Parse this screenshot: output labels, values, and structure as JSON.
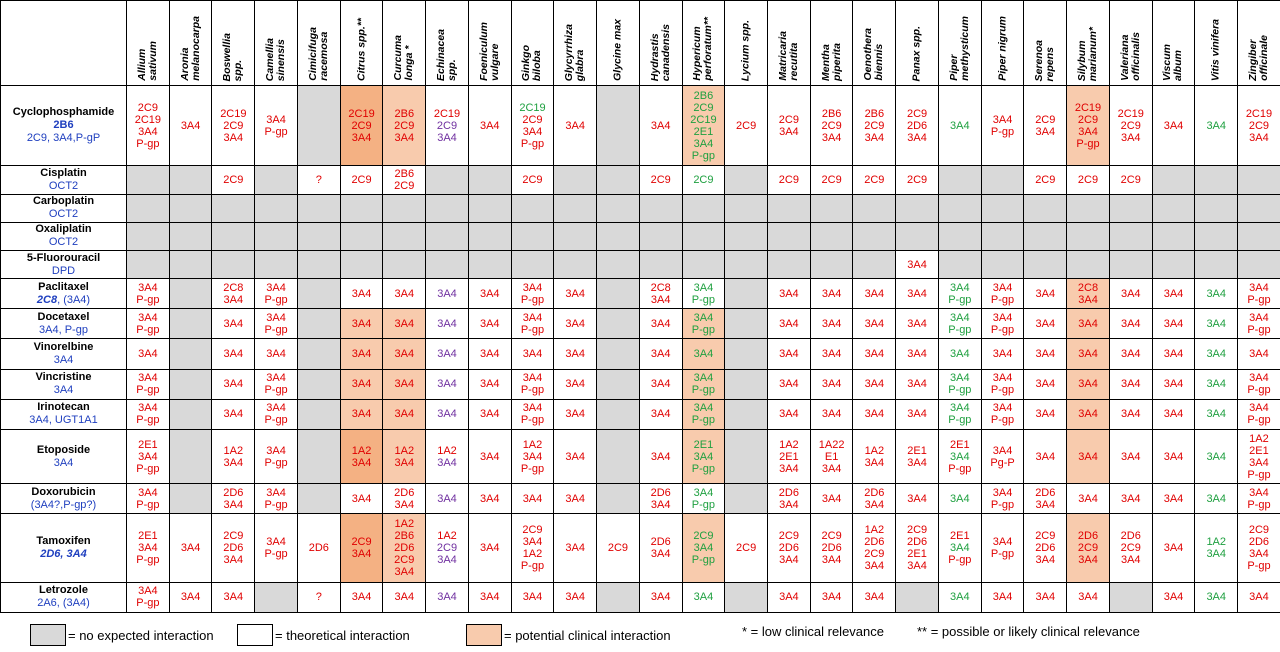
{
  "herbs": [
    "Allium\nsativum",
    "Aronia\nmelanocarpa",
    "Boswellia\nspp.",
    "Camellia\nsinensis",
    "Cimicifuga\nracemosa",
    "Citrus spp.**",
    "Curcuma\nlonga *",
    "Echinacea\nspp.",
    "Foeniculum\nvulgare",
    "Ginkgo\nbiloba",
    "Glycyrrhiza\nglabra",
    "Glycine max",
    "Hydrastis\ncanadensis",
    "Hypericum\nperforatum**",
    "Lycium spp.",
    "Matricaria\nrecutita",
    "Mentha\npiperita",
    "Oenothera\nbiennis",
    "Panax spp.",
    "Piper\nmethysticum",
    "Piper nigrum",
    "Serenoa\nrepens",
    "Silybum\nmarianum*",
    "Valeriana\nofficinalis",
    "Viscum\nalbum",
    "Vitis vinifera",
    "Zingiber\nofficinale"
  ],
  "drugs": [
    {
      "name": "Cyclophosphamide",
      "sub1": "2B6",
      "sub2": "2C9, 3A4,P-gP"
    },
    {
      "name": "Cisplatin",
      "sub1": "OCT2"
    },
    {
      "name": "Carboplatin",
      "sub1": "OCT2"
    },
    {
      "name": "Oxaliplatin",
      "sub1": "OCT2"
    },
    {
      "name": "5-Fluorouracil",
      "sub1": "DPD"
    },
    {
      "name": "Paclitaxel",
      "sub1": "2C8",
      "sub2": ", (3A4)"
    },
    {
      "name": "Docetaxel",
      "sub1": "3A4, P-gp"
    },
    {
      "name": "Vinorelbine",
      "sub1": "3A4"
    },
    {
      "name": "Vincristine",
      "sub1": "3A4"
    },
    {
      "name": "Irinotecan",
      "sub1": "3A4, UGT1A1"
    },
    {
      "name": "Etoposide",
      "sub1": "3A4"
    },
    {
      "name": "Doxorubicin",
      "sub1": "(3A4?,P-gp?)"
    },
    {
      "name": "Tamoxifen",
      "sub1": "2D6, 3A4"
    },
    {
      "name": "Letrozole",
      "sub1": "2A6, (3A4)"
    }
  ],
  "cells": [
    [
      [
        "w",
        "r",
        "2C9\n2C19\n3A4\nP-gp"
      ],
      [
        "w",
        "r",
        "3A4"
      ],
      [
        "w",
        "r",
        "2C19\n2C9\n3A4"
      ],
      [
        "w",
        "r",
        "3A4\nP-gp"
      ],
      [
        "g",
        "",
        ""
      ],
      [
        "p2",
        "r",
        "2C19\n2C9\n3A4"
      ],
      [
        "p",
        "r",
        "2B6\n2C9\n3A4"
      ],
      [
        "w",
        "m",
        "2C19|r\n2C9|p\n3A4|p"
      ],
      [
        "w",
        "r",
        "3A4"
      ],
      [
        "w",
        "m",
        "2C19|g\n2C9|r\n3A4|r\nP-gp|r"
      ],
      [
        "w",
        "r",
        "3A4"
      ],
      [
        "g",
        "",
        ""
      ],
      [
        "w",
        "r",
        "3A4"
      ],
      [
        "p",
        "g",
        "2B6\n2C9\n2C19\n2E1\n3A4\nP-gp"
      ],
      [
        "w",
        "r",
        "2C9"
      ],
      [
        "w",
        "r",
        "2C9\n3A4"
      ],
      [
        "w",
        "r",
        "2B6\n2C9\n3A4"
      ],
      [
        "w",
        "r",
        "2B6\n2C9\n3A4"
      ],
      [
        "w",
        "r",
        "2C9\n2D6\n3A4"
      ],
      [
        "w",
        "g",
        "3A4"
      ],
      [
        "w",
        "r",
        "3A4\nP-gp"
      ],
      [
        "w",
        "r",
        "2C9\n3A4"
      ],
      [
        "p",
        "r",
        "2C19\n2C9\n3A4\nP-gp"
      ],
      [
        "w",
        "r",
        "2C19\n2C9\n3A4"
      ],
      [
        "w",
        "r",
        "3A4"
      ],
      [
        "w",
        "g",
        "3A4"
      ],
      [
        "w",
        "r",
        "2C19\n2C9\n3A4"
      ]
    ],
    [
      [
        "g",
        "",
        ""
      ],
      [
        "g",
        "",
        ""
      ],
      [
        "w",
        "r",
        "2C9"
      ],
      [
        "g",
        "",
        ""
      ],
      [
        "w",
        "r",
        "?"
      ],
      [
        "w",
        "r",
        "2C9"
      ],
      [
        "w",
        "r",
        "2B6\n2C9"
      ],
      [
        "g",
        "",
        ""
      ],
      [
        "g",
        "",
        ""
      ],
      [
        "w",
        "r",
        "2C9"
      ],
      [
        "g",
        "",
        ""
      ],
      [
        "g",
        "",
        ""
      ],
      [
        "w",
        "r",
        "2C9"
      ],
      [
        "w",
        "g",
        "2C9"
      ],
      [
        "g",
        "",
        ""
      ],
      [
        "w",
        "r",
        "2C9"
      ],
      [
        "w",
        "r",
        "2C9"
      ],
      [
        "w",
        "r",
        "2C9"
      ],
      [
        "w",
        "r",
        "2C9"
      ],
      [
        "g",
        "",
        ""
      ],
      [
        "g",
        "",
        ""
      ],
      [
        "w",
        "r",
        "2C9"
      ],
      [
        "w",
        "r",
        "2C9"
      ],
      [
        "w",
        "r",
        "2C9"
      ],
      [
        "g",
        "",
        ""
      ],
      [
        "g",
        "",
        ""
      ],
      [
        "g",
        "",
        ""
      ]
    ],
    "allgray",
    "allgray",
    "fu",
    [
      [
        "w",
        "r",
        "3A4\nP-gp"
      ],
      [
        "g",
        "",
        ""
      ],
      [
        "w",
        "r",
        "2C8\n3A4"
      ],
      [
        "w",
        "r",
        "3A4\nP-gp"
      ],
      [
        "g",
        "",
        ""
      ],
      [
        "w",
        "r",
        "3A4"
      ],
      [
        "w",
        "r",
        "3A4"
      ],
      [
        "w",
        "p",
        "3A4"
      ],
      [
        "w",
        "r",
        "3A4"
      ],
      [
        "w",
        "r",
        "3A4\nP-gp"
      ],
      [
        "w",
        "r",
        "3A4"
      ],
      [
        "g",
        "",
        ""
      ],
      [
        "w",
        "r",
        "2C8\n3A4"
      ],
      [
        "w",
        "g",
        "3A4\nP-gp"
      ],
      [
        "g",
        "",
        ""
      ],
      [
        "w",
        "r",
        "3A4"
      ],
      [
        "w",
        "r",
        "3A4"
      ],
      [
        "w",
        "r",
        "3A4"
      ],
      [
        "w",
        "r",
        "3A4"
      ],
      [
        "w",
        "g",
        "3A4\nP-gp"
      ],
      [
        "w",
        "r",
        "3A4\nP-gp"
      ],
      [
        "w",
        "r",
        "3A4"
      ],
      [
        "p",
        "r",
        "2C8\n3A4"
      ],
      [
        "w",
        "r",
        "3A4"
      ],
      [
        "w",
        "r",
        "3A4"
      ],
      [
        "w",
        "g",
        "3A4"
      ],
      [
        "w",
        "r",
        "3A4\nP-gp"
      ]
    ],
    [
      [
        "w",
        "r",
        "3A4\nP-gp"
      ],
      [
        "g",
        "",
        ""
      ],
      [
        "w",
        "r",
        "3A4"
      ],
      [
        "w",
        "r",
        "3A4\nP-gp"
      ],
      [
        "g",
        "",
        ""
      ],
      [
        "p",
        "r",
        "3A4"
      ],
      [
        "p",
        "r",
        "3A4"
      ],
      [
        "w",
        "p",
        "3A4"
      ],
      [
        "w",
        "r",
        "3A4"
      ],
      [
        "w",
        "r",
        "3A4\nP-gp"
      ],
      [
        "w",
        "r",
        "3A4"
      ],
      [
        "g",
        "",
        ""
      ],
      [
        "w",
        "r",
        "3A4"
      ],
      [
        "p",
        "g",
        "3A4\nP-gp"
      ],
      [
        "g",
        "",
        ""
      ],
      [
        "w",
        "r",
        "3A4"
      ],
      [
        "w",
        "r",
        "3A4"
      ],
      [
        "w",
        "r",
        "3A4"
      ],
      [
        "w",
        "r",
        "3A4"
      ],
      [
        "w",
        "g",
        "3A4\nP-gp"
      ],
      [
        "w",
        "r",
        "3A4\nP-gp"
      ],
      [
        "w",
        "r",
        "3A4"
      ],
      [
        "p",
        "r",
        "3A4"
      ],
      [
        "w",
        "r",
        "3A4"
      ],
      [
        "w",
        "r",
        "3A4"
      ],
      [
        "w",
        "g",
        "3A4"
      ],
      [
        "w",
        "r",
        "3A4\nP-gp"
      ]
    ],
    [
      [
        "w",
        "r",
        "3A4"
      ],
      [
        "g",
        "",
        ""
      ],
      [
        "w",
        "r",
        "3A4"
      ],
      [
        "w",
        "r",
        "3A4"
      ],
      [
        "g",
        "",
        ""
      ],
      [
        "p",
        "r",
        "3A4"
      ],
      [
        "p",
        "r",
        "3A4"
      ],
      [
        "w",
        "p",
        "3A4"
      ],
      [
        "w",
        "r",
        "3A4"
      ],
      [
        "w",
        "r",
        "3A4"
      ],
      [
        "w",
        "r",
        "3A4"
      ],
      [
        "g",
        "",
        ""
      ],
      [
        "w",
        "r",
        "3A4"
      ],
      [
        "p",
        "g",
        "3A4"
      ],
      [
        "g",
        "",
        ""
      ],
      [
        "w",
        "r",
        "3A4"
      ],
      [
        "w",
        "r",
        "3A4"
      ],
      [
        "w",
        "r",
        "3A4"
      ],
      [
        "w",
        "r",
        "3A4"
      ],
      [
        "w",
        "g",
        "3A4"
      ],
      [
        "w",
        "r",
        "3A4"
      ],
      [
        "w",
        "r",
        "3A4"
      ],
      [
        "p",
        "r",
        "3A4"
      ],
      [
        "w",
        "r",
        "3A4"
      ],
      [
        "w",
        "r",
        "3A4"
      ],
      [
        "w",
        "g",
        "3A4"
      ],
      [
        "w",
        "r",
        "3A4"
      ]
    ],
    [
      [
        "w",
        "r",
        "3A4\nP-gp"
      ],
      [
        "g",
        "",
        ""
      ],
      [
        "w",
        "r",
        "3A4"
      ],
      [
        "w",
        "r",
        "3A4\nP-gp"
      ],
      [
        "g",
        "",
        ""
      ],
      [
        "p",
        "r",
        "3A4"
      ],
      [
        "p",
        "r",
        "3A4"
      ],
      [
        "w",
        "p",
        "3A4"
      ],
      [
        "w",
        "r",
        "3A4"
      ],
      [
        "w",
        "r",
        "3A4\nP-gp"
      ],
      [
        "w",
        "r",
        "3A4"
      ],
      [
        "g",
        "",
        ""
      ],
      [
        "w",
        "r",
        "3A4"
      ],
      [
        "p",
        "g",
        "3A4\nP-gp"
      ],
      [
        "g",
        "",
        ""
      ],
      [
        "w",
        "r",
        "3A4"
      ],
      [
        "w",
        "r",
        "3A4"
      ],
      [
        "w",
        "r",
        "3A4"
      ],
      [
        "w",
        "r",
        "3A4"
      ],
      [
        "w",
        "g",
        "3A4\nP-gp"
      ],
      [
        "w",
        "r",
        "3A4\nP-gp"
      ],
      [
        "w",
        "r",
        "3A4"
      ],
      [
        "p",
        "r",
        "3A4"
      ],
      [
        "w",
        "r",
        "3A4"
      ],
      [
        "w",
        "r",
        "3A4"
      ],
      [
        "w",
        "g",
        "3A4"
      ],
      [
        "w",
        "r",
        "3A4\nP-gp"
      ]
    ],
    [
      [
        "w",
        "r",
        "3A4\nP-gp"
      ],
      [
        "g",
        "",
        ""
      ],
      [
        "w",
        "r",
        "3A4"
      ],
      [
        "w",
        "r",
        "3A4\nP-gp"
      ],
      [
        "g",
        "",
        ""
      ],
      [
        "p",
        "r",
        "3A4"
      ],
      [
        "p",
        "r",
        "3A4"
      ],
      [
        "w",
        "p",
        "3A4"
      ],
      [
        "w",
        "r",
        "3A4"
      ],
      [
        "w",
        "r",
        "3A4\nP-gp"
      ],
      [
        "w",
        "r",
        "3A4"
      ],
      [
        "g",
        "",
        ""
      ],
      [
        "w",
        "r",
        "3A4"
      ],
      [
        "p",
        "g",
        "3A4\nP-gp"
      ],
      [
        "g",
        "",
        ""
      ],
      [
        "w",
        "r",
        "3A4"
      ],
      [
        "w",
        "r",
        "3A4"
      ],
      [
        "w",
        "r",
        "3A4"
      ],
      [
        "w",
        "r",
        "3A4"
      ],
      [
        "w",
        "g",
        "3A4\nP-gp"
      ],
      [
        "w",
        "r",
        "3A4\nP-gp"
      ],
      [
        "w",
        "r",
        "3A4"
      ],
      [
        "p",
        "r",
        "3A4"
      ],
      [
        "w",
        "r",
        "3A4"
      ],
      [
        "w",
        "r",
        "3A4"
      ],
      [
        "w",
        "g",
        "3A4"
      ],
      [
        "w",
        "r",
        "3A4\nP-gp"
      ]
    ],
    [
      [
        "w",
        "r",
        "2E1\n3A4\nP-gp"
      ],
      [
        "g",
        "",
        ""
      ],
      [
        "w",
        "r",
        "1A2\n3A4"
      ],
      [
        "w",
        "r",
        "3A4\nP-gp"
      ],
      [
        "g",
        "",
        ""
      ],
      [
        "p2",
        "r",
        "1A2\n3A4"
      ],
      [
        "p",
        "r",
        "1A2\n3A4"
      ],
      [
        "w",
        "m",
        "1A2|r\n3A4|p"
      ],
      [
        "w",
        "r",
        "3A4"
      ],
      [
        "w",
        "r",
        "1A2\n3A4\nP-gp"
      ],
      [
        "w",
        "r",
        "3A4"
      ],
      [
        "g",
        "",
        ""
      ],
      [
        "w",
        "r",
        "3A4"
      ],
      [
        "p",
        "g",
        "2E1\n3A4\nP-gp"
      ],
      [
        "g",
        "",
        ""
      ],
      [
        "w",
        "r",
        "1A2\n2E1\n3A4"
      ],
      [
        "w",
        "r",
        "1A22\nE1\n3A4"
      ],
      [
        "w",
        "r",
        "1A2\n3A4"
      ],
      [
        "w",
        "r",
        "2E1\n3A4"
      ],
      [
        "w",
        "m",
        "2E1|r\n3A4|g\nP-gp|r"
      ],
      [
        "w",
        "r",
        "3A4\nPg-P"
      ],
      [
        "w",
        "r",
        "3A4"
      ],
      [
        "p",
        "r",
        "3A4"
      ],
      [
        "w",
        "r",
        "3A4"
      ],
      [
        "w",
        "r",
        "3A4"
      ],
      [
        "w",
        "g",
        "3A4"
      ],
      [
        "w",
        "r",
        "1A2\n2E1\n3A4\nP-gp"
      ]
    ],
    [
      [
        "w",
        "r",
        "3A4\nP-gp"
      ],
      [
        "g",
        "",
        ""
      ],
      [
        "w",
        "r",
        "2D6\n3A4"
      ],
      [
        "w",
        "r",
        "3A4\nP-gp"
      ],
      [
        "g",
        "",
        ""
      ],
      [
        "w",
        "r",
        "3A4"
      ],
      [
        "w",
        "r",
        "2D6\n3A4"
      ],
      [
        "w",
        "p",
        "3A4"
      ],
      [
        "w",
        "r",
        "3A4"
      ],
      [
        "w",
        "r",
        "3A4"
      ],
      [
        "w",
        "r",
        "3A4"
      ],
      [
        "g",
        "",
        ""
      ],
      [
        "w",
        "r",
        "2D6\n3A4"
      ],
      [
        "w",
        "g",
        "3A4\nP-gp"
      ],
      [
        "g",
        "",
        ""
      ],
      [
        "w",
        "r",
        "2D6\n3A4"
      ],
      [
        "w",
        "r",
        "3A4"
      ],
      [
        "w",
        "r",
        "2D6\n3A4"
      ],
      [
        "w",
        "r",
        "3A4"
      ],
      [
        "w",
        "g",
        "3A4"
      ],
      [
        "w",
        "r",
        "3A4\nP-gp"
      ],
      [
        "w",
        "r",
        "2D6\n3A4"
      ],
      [
        "w",
        "r",
        "3A4"
      ],
      [
        "w",
        "r",
        "3A4"
      ],
      [
        "w",
        "r",
        "3A4"
      ],
      [
        "w",
        "g",
        "3A4"
      ],
      [
        "w",
        "r",
        "3A4\nP-gp"
      ]
    ],
    [
      [
        "w",
        "r",
        "2E1\n3A4\nP-gp"
      ],
      [
        "w",
        "r",
        "3A4"
      ],
      [
        "w",
        "r",
        "2C9\n2D6\n3A4"
      ],
      [
        "w",
        "r",
        "3A4\nP-gp"
      ],
      [
        "w",
        "r",
        "2D6"
      ],
      [
        "p2",
        "r",
        "2C9\n3A4"
      ],
      [
        "p",
        "r",
        "1A2\n2B6\n2D6\n2C9\n3A4"
      ],
      [
        "w",
        "m",
        "1A2|r\n2C9|p\n3A4|p"
      ],
      [
        "w",
        "r",
        "3A4"
      ],
      [
        "w",
        "r",
        "2C9\n3A4\n1A2\nP-gp"
      ],
      [
        "w",
        "r",
        "3A4"
      ],
      [
        "w",
        "r",
        "2C9"
      ],
      [
        "w",
        "r",
        "2D6\n3A4"
      ],
      [
        "p",
        "g",
        "2C9\n3A4\nP-gp"
      ],
      [
        "w",
        "r",
        "2C9"
      ],
      [
        "w",
        "r",
        "2C9\n2D6\n3A4"
      ],
      [
        "w",
        "r",
        "2C9\n2D6\n3A4"
      ],
      [
        "w",
        "r",
        "1A2\n2D6\n2C9\n3A4"
      ],
      [
        "w",
        "r",
        "2C9\n2D6\n2E1\n3A4"
      ],
      [
        "w",
        "m",
        "2E1|r\n3A4|g\nP-gp|r"
      ],
      [
        "w",
        "r",
        "3A4\nP-gp"
      ],
      [
        "w",
        "r",
        "2C9\n2D6\n3A4"
      ],
      [
        "p",
        "r",
        "2D6\n2C9\n3A4"
      ],
      [
        "w",
        "r",
        "2D6\n2C9\n3A4"
      ],
      [
        "w",
        "r",
        "3A4"
      ],
      [
        "w",
        "g",
        "1A2\n3A4"
      ],
      [
        "w",
        "r",
        "2C9\n2D6\n3A4\nP-gp"
      ]
    ],
    [
      [
        "w",
        "r",
        "3A4\nP-gp"
      ],
      [
        "w",
        "r",
        "3A4"
      ],
      [
        "w",
        "r",
        "3A4"
      ],
      [
        "g",
        "",
        ""
      ],
      [
        "w",
        "r",
        "?"
      ],
      [
        "w",
        "r",
        "3A4"
      ],
      [
        "w",
        "r",
        "3A4"
      ],
      [
        "w",
        "p",
        "3A4"
      ],
      [
        "w",
        "r",
        "3A4"
      ],
      [
        "w",
        "r",
        "3A4"
      ],
      [
        "w",
        "r",
        "3A4"
      ],
      [
        "g",
        "",
        ""
      ],
      [
        "w",
        "r",
        "3A4"
      ],
      [
        "w",
        "g",
        "3A4"
      ],
      [
        "g",
        "",
        ""
      ],
      [
        "w",
        "r",
        "3A4"
      ],
      [
        "w",
        "r",
        "3A4"
      ],
      [
        "w",
        "r",
        "3A4"
      ],
      [
        "g",
        "",
        ""
      ],
      [
        "w",
        "g",
        "3A4"
      ],
      [
        "w",
        "r",
        "3A4"
      ],
      [
        "w",
        "r",
        "3A4"
      ],
      [
        "w",
        "r",
        "3A4"
      ],
      [
        "g",
        "",
        ""
      ],
      [
        "w",
        "r",
        "3A4"
      ],
      [
        "w",
        "g",
        "3A4"
      ],
      [
        "w",
        "r",
        "3A4"
      ]
    ]
  ],
  "fu_cell": {
    "text": "3A4",
    "col": 18
  },
  "legend": {
    "none": "= no expected interaction",
    "theoretical": "= theoretical interaction",
    "potential": "= potential clinical interaction",
    "low": "*  = low clinical relevance",
    "likely": "** = possible or likely clinical relevance"
  },
  "colors": {
    "gray": "#d9d9d9",
    "orange": "#f8cbad",
    "orange_dark": "#f4b183",
    "red": "#e00000",
    "green": "#1fa040",
    "purple": "#7030a0",
    "blue": "#1f3fbf"
  }
}
